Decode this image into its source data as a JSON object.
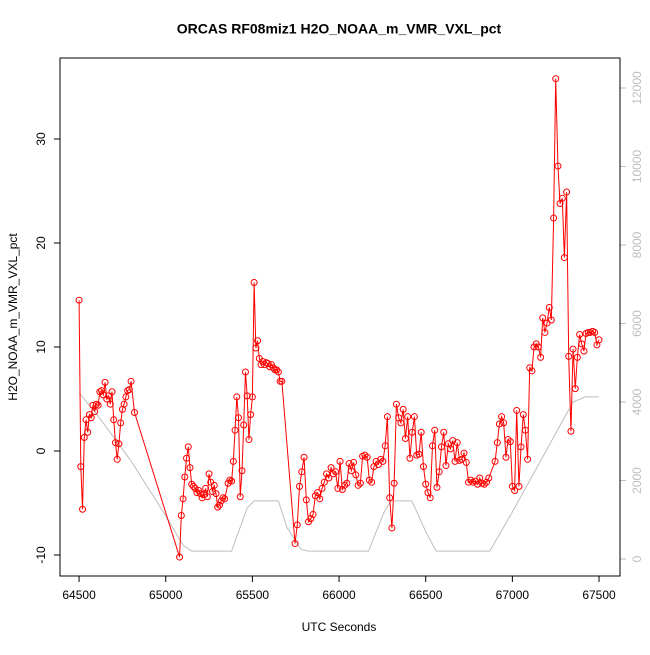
{
  "chart_data": {
    "type": "line",
    "title": "ORCAS RF08miz1 H2O_NOAA_m_VMR_VXL_pct",
    "x_label": "UTC Seconds",
    "y_label": "H2O_NOAA_m_VMR_VXL_pct",
    "xlim": [
      64390,
      67621
    ],
    "xticks": [
      64500,
      65000,
      65500,
      66000,
      66500,
      67000,
      67500
    ],
    "ylim": [
      -12.02,
      37.79
    ],
    "yticks": [
      -10,
      0,
      10,
      20,
      30
    ],
    "y2lim": [
      -433,
      12764
    ],
    "y2ticks": [
      0,
      2000,
      4000,
      6000,
      8000,
      10000,
      12000
    ],
    "series": [
      {
        "color": "#ff0000",
        "markers": true,
        "x": [
          64500,
          64510,
          64520,
          64530,
          64540,
          64550,
          64560,
          64570,
          64580,
          64590,
          64600,
          64610,
          64620,
          64630,
          64640,
          64650,
          64660,
          64670,
          64680,
          64690,
          64700,
          64710,
          64720,
          64730,
          64740,
          64750,
          64760,
          64770,
          64780,
          64790,
          64800,
          64820,
          65080,
          65090,
          65100,
          65110,
          65120,
          65130,
          65140,
          65150,
          65160,
          65170,
          65180,
          65190,
          65200,
          65210,
          65220,
          65230,
          65240,
          65250,
          65260,
          65270,
          65280,
          65290,
          65300,
          65310,
          65320,
          65330,
          65340,
          65360,
          65370,
          65380,
          65390,
          65400,
          65410,
          65420,
          65430,
          65440,
          65450,
          65460,
          65470,
          65480,
          65490,
          65500,
          65510,
          65520,
          65530,
          65540,
          65550,
          65560,
          65570,
          65580,
          65590,
          65600,
          65610,
          65620,
          65630,
          65640,
          65650,
          65660,
          65670,
          65746,
          65759,
          65772,
          65785,
          65798,
          65811,
          65824,
          65837,
          65850,
          65863,
          65876,
          65889,
          65902,
          65915,
          65928,
          65941,
          65954,
          65967,
          65980,
          65993,
          66006,
          66019,
          66032,
          66045,
          66058,
          66071,
          66084,
          66097,
          66110,
          66123,
          66136,
          66149,
          66162,
          66175,
          66188,
          66201,
          66214,
          66227,
          66240,
          66253,
          66266,
          66279,
          66292,
          66305,
          66318,
          66331,
          66344,
          66357,
          66370,
          66383,
          66396,
          66409,
          66422,
          66435,
          66448,
          66461,
          66474,
          66487,
          66500,
          66513,
          66526,
          66539,
          66552,
          66565,
          66578,
          66591,
          66604,
          66617,
          66630,
          66643,
          66656,
          66669,
          66682,
          66695,
          66708,
          66721,
          66734,
          66747,
          66760,
          66773,
          66786,
          66799,
          66812,
          66825,
          66838,
          66851,
          66864,
          66900,
          66913,
          66925,
          66938,
          66950,
          66963,
          66975,
          66988,
          67000,
          67013,
          67025,
          67038,
          67050,
          67063,
          67075,
          67088,
          67100,
          67113,
          67125,
          67138,
          67150,
          67163,
          67175,
          67188,
          67200,
          67213,
          67225,
          67238,
          67250,
          67263,
          67275,
          67288,
          67300,
          67313,
          67325,
          67338,
          67350,
          67363,
          67375,
          67388,
          67400,
          67413,
          67425,
          67438,
          67450,
          67463,
          67475,
          67488,
          67500
        ],
        "values": [
          14.5,
          -1.5,
          -5.6,
          1.3,
          3.0,
          1.8,
          3.5,
          3.2,
          4.4,
          3.8,
          4.5,
          4.4,
          5.7,
          5.8,
          5.4,
          6.6,
          5.0,
          5.3,
          4.5,
          5.7,
          3.0,
          0.8,
          -0.8,
          0.7,
          2.7,
          4.0,
          4.5,
          5.2,
          5.8,
          5.9,
          6.7,
          3.7,
          -10.2,
          -6.2,
          -4.6,
          -2.5,
          -0.7,
          0.4,
          -1.6,
          -3.2,
          -3.4,
          -3.6,
          -4.0,
          -3.8,
          -4.1,
          -4.5,
          -4.2,
          -3.6,
          -4.4,
          -2.2,
          -3.0,
          -3.9,
          -3.3,
          -4.1,
          -5.4,
          -5.2,
          -4.8,
          -4.5,
          -4.6,
          -3.1,
          -2.8,
          -2.9,
          -1.0,
          2.0,
          5.2,
          3.2,
          -4.4,
          -1.9,
          2.5,
          7.6,
          5.3,
          1.1,
          3.5,
          5.2,
          16.2,
          9.9,
          10.6,
          8.9,
          8.3,
          8.6,
          8.3,
          8.5,
          8.4,
          8.1,
          8.3,
          8.0,
          7.8,
          7.8,
          7.6,
          6.7,
          6.7,
          -8.9,
          -7.1,
          -3.4,
          -2.0,
          -0.6,
          -4.7,
          -6.8,
          -6.5,
          -6.1,
          -4.3,
          -4.0,
          -4.6,
          -3.6,
          -3.0,
          -2.2,
          -2.6,
          -1.6,
          -2.2,
          -2.0,
          -3.6,
          -1.0,
          -3.7,
          -3.3,
          -3.1,
          -1.2,
          -1.9,
          -1.1,
          -2.3,
          -3.3,
          -3.1,
          -0.5,
          -0.4,
          -0.6,
          -2.8,
          -3.0,
          -1.5,
          -1.0,
          -1.3,
          -0.8,
          -1.0,
          0.5,
          3.3,
          -4.5,
          -7.4,
          -3.1,
          4.5,
          3.2,
          2.7,
          4.0,
          1.2,
          3.3,
          -0.7,
          1.8,
          3.3,
          -0.4,
          -0.3,
          1.8,
          -1.5,
          -3.2,
          -4.0,
          -4.5,
          0.5,
          2.0,
          -3.5,
          -2.0,
          0.4,
          1.8,
          -1.4,
          0.7,
          0.2,
          1.0,
          -1.0,
          0.8,
          -0.9,
          -0.8,
          -0.2,
          -1.1,
          -3.0,
          -2.8,
          -3.0,
          -2.9,
          -3.2,
          -2.6,
          -3.1,
          -3.2,
          -3.0,
          -2.6,
          -1.0,
          0.8,
          2.6,
          3.3,
          2.7,
          -0.6,
          1.1,
          0.9,
          -3.4,
          -3.8,
          3.9,
          -3.4,
          0.4,
          3.5,
          2.0,
          -0.8,
          8.0,
          7.7,
          10.0,
          10.3,
          10.0,
          9.0,
          12.8,
          11.4,
          12.3,
          13.8,
          12.6,
          22.4,
          35.8,
          27.4,
          23.8,
          24.3,
          18.6,
          24.9,
          9.1,
          1.9,
          9.8,
          6.0,
          9.0,
          11.2,
          10.3,
          9.6,
          11.3,
          11.4,
          11.4,
          11.5,
          11.4,
          10.2,
          10.7
        ]
      },
      {
        "color": "#bebebe",
        "axis": "y2",
        "markers": false,
        "x": [
          64500,
          64600,
          64800,
          65000,
          65100,
          65150,
          65380,
          65470,
          65510,
          65650,
          65700,
          65780,
          65820,
          66170,
          66260,
          66300,
          66420,
          66500,
          66560,
          66870,
          67000,
          67200,
          67350,
          67420,
          67500
        ],
        "values": [
          4230,
          3700,
          2500,
          1100,
          350,
          200,
          200,
          1300,
          1480,
          1480,
          800,
          250,
          200,
          200,
          1200,
          1480,
          1480,
          700,
          200,
          200,
          1200,
          2800,
          4000,
          4130,
          4130
        ]
      }
    ]
  }
}
